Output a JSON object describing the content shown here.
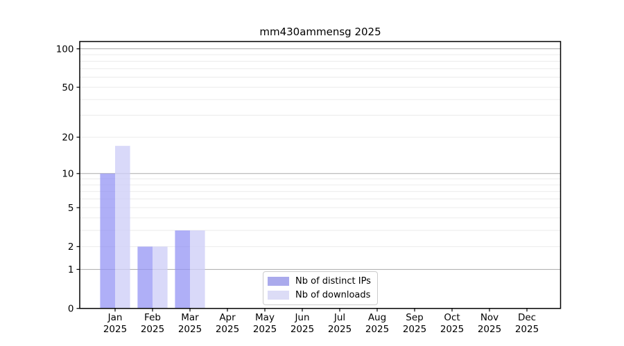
{
  "chart_data": {
    "type": "bar",
    "title": "mm430ammensg 2025",
    "categories": [
      "Jan",
      "Feb",
      "Mar",
      "Apr",
      "May",
      "Jun",
      "Jul",
      "Aug",
      "Sep",
      "Oct",
      "Nov",
      "Dec"
    ],
    "x_tick_second_line": "2025",
    "series": [
      {
        "name": "Nb of distinct IPs",
        "values": [
          10,
          2,
          3,
          0,
          0,
          0,
          0,
          0,
          0,
          0,
          0,
          0
        ],
        "bar_color": "rgba(148,148,244,0.75)",
        "legend_color": "#aaaaec"
      },
      {
        "name": "Nb of downloads",
        "values": [
          17,
          2,
          3,
          0,
          0,
          0,
          0,
          0,
          0,
          0,
          0,
          0
        ],
        "bar_color": "rgba(206,206,247,0.78)",
        "legend_color": "#dcdcf6"
      }
    ],
    "yscale": "log10(1+x)",
    "ylim": [
      0,
      114
    ],
    "ytick_labels": [
      0,
      1,
      2,
      5,
      10,
      20,
      50,
      100
    ],
    "major_gridlines": [
      1,
      10,
      100
    ],
    "minor_gridlines": [
      2,
      3,
      4,
      5,
      6,
      7,
      8,
      9,
      20,
      30,
      40,
      50,
      60,
      70,
      80,
      90
    ],
    "legend_position": "inside-bottom-center",
    "colors": {
      "grid_major": "#aaaaaa",
      "grid_minor": "#ebebeb",
      "axis": "#000000",
      "text": "#000000",
      "background": "#ffffff"
    }
  }
}
